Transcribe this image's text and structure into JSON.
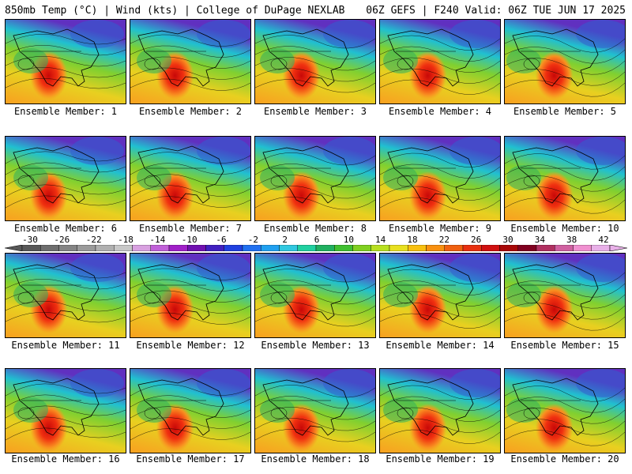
{
  "header": {
    "left": "850mb Temp (°C) | Wind (kts) | College of DuPage NEXLAB",
    "right": "06Z GEFS | F240 Valid: 06Z TUE JUN 17 2025"
  },
  "members": [
    "Ensemble Member: 1",
    "Ensemble Member: 2",
    "Ensemble Member: 3",
    "Ensemble Member: 4",
    "Ensemble Member: 5",
    "Ensemble Member: 6",
    "Ensemble Member: 7",
    "Ensemble Member: 8",
    "Ensemble Member: 9",
    "Ensemble Member: 10",
    "Ensemble Member: 11",
    "Ensemble Member: 12",
    "Ensemble Member: 13",
    "Ensemble Member: 14",
    "Ensemble Member: 15",
    "Ensemble Member: 16",
    "Ensemble Member: 17",
    "Ensemble Member: 18",
    "Ensemble Member: 19",
    "Ensemble Member: 20"
  ],
  "colorbar": {
    "labels": [
      "-30",
      "-26",
      "-22",
      "-18",
      "-14",
      "-10",
      "-6",
      "-2",
      "2",
      "6",
      "10",
      "14",
      "18",
      "22",
      "26",
      "30",
      "34",
      "38",
      "42"
    ],
    "colors": [
      "#585858",
      "#6e6e6e",
      "#848484",
      "#9a9a9a",
      "#b0b0b0",
      "#c8c8c8",
      "#d8a0e0",
      "#c060d8",
      "#a020c8",
      "#7010b0",
      "#4020c0",
      "#2040e0",
      "#2070f0",
      "#20a0f0",
      "#30c8e0",
      "#20d0a0",
      "#20b060",
      "#40c030",
      "#80d020",
      "#b8e020",
      "#e8e020",
      "#f8c010",
      "#f89010",
      "#f06010",
      "#e83010",
      "#d01010",
      "#a80808",
      "#800020",
      "#b03060",
      "#d060a0",
      "#f090d0",
      "#e8b0e8"
    ]
  }
}
